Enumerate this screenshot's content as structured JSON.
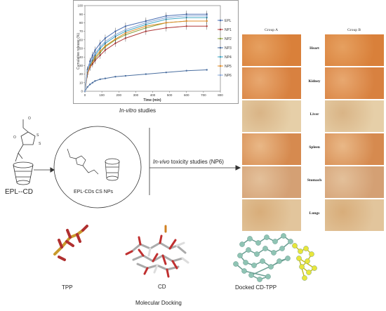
{
  "chart_data": {
    "type": "line",
    "title": "",
    "xlabel": "Time (min)",
    "ylabel": "Cumulative release (%)",
    "xlim": [
      0,
      800
    ],
    "ylim": [
      0,
      100
    ],
    "xticks": [
      "0",
      "100",
      "200",
      "300",
      "400",
      "500",
      "600",
      "700",
      "800"
    ],
    "yticks": [
      "0",
      "10",
      "20",
      "30",
      "40",
      "50",
      "60",
      "70",
      "80",
      "90",
      "100"
    ],
    "x": [
      0,
      15,
      30,
      45,
      60,
      90,
      120,
      180,
      240,
      360,
      480,
      600,
      720
    ],
    "series": [
      {
        "name": "EPL",
        "color": "#4a6fb3",
        "values": [
          0,
          25,
          35,
          42,
          48,
          56,
          62,
          70,
          76,
          82,
          88,
          90,
          90
        ]
      },
      {
        "name": "NP1",
        "color": "#b03a3a",
        "values": [
          0,
          20,
          28,
          32,
          36,
          42,
          48,
          56,
          62,
          70,
          74,
          76,
          76
        ]
      },
      {
        "name": "NP2",
        "color": "#8ca13a",
        "values": [
          0,
          22,
          30,
          34,
          38,
          45,
          52,
          60,
          66,
          74,
          80,
          82,
          82
        ]
      },
      {
        "name": "NP3",
        "color": "#4b6fa0",
        "values": [
          0,
          5,
          8,
          10,
          12,
          14,
          15,
          17,
          18,
          20,
          22,
          24,
          25
        ]
      },
      {
        "name": "NP4",
        "color": "#3fa6c4",
        "values": [
          0,
          23,
          31,
          36,
          42,
          50,
          56,
          64,
          70,
          78,
          84,
          86,
          86
        ]
      },
      {
        "name": "NP5",
        "color": "#e08c2a",
        "values": [
          0,
          21,
          29,
          34,
          40,
          47,
          53,
          61,
          68,
          76,
          80,
          82,
          82
        ]
      },
      {
        "name": "NP6",
        "color": "#8aa8d8",
        "values": [
          0,
          24,
          33,
          38,
          44,
          52,
          58,
          66,
          72,
          80,
          86,
          88,
          88
        ]
      }
    ]
  },
  "captions": {
    "invitro_prefix": "In-vitro",
    "invitro_suffix": " studies",
    "invivo_prefix": "In-vivo",
    "invivo_suffix": " toxicity studies (NP6)",
    "epl_cd": "EPL--CD",
    "epl_cds_np": "EPL-CDs CS NPs",
    "tpp": "TPP",
    "cd": "CD",
    "docked": "Docked CD-TPP",
    "molecular_docking": "Molecular Docking"
  },
  "histology": {
    "group_a": "Group A",
    "group_b": "Group B",
    "tissues": [
      "Heart",
      "Kidney",
      "Liver",
      "Spleen",
      "Stomach",
      "Lungs"
    ]
  }
}
